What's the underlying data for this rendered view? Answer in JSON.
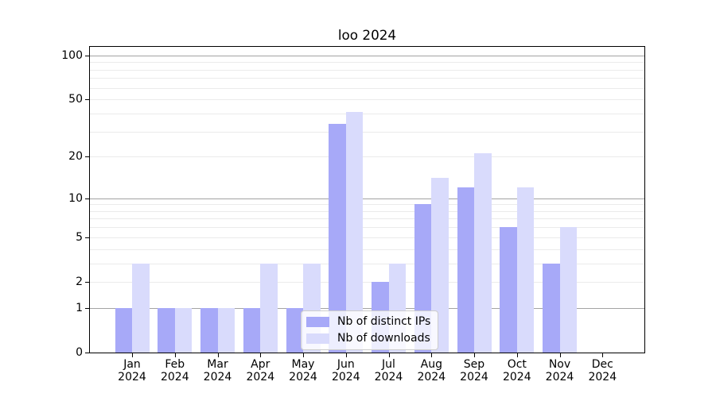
{
  "chart_data": {
    "type": "bar",
    "title": "loo 2024",
    "categories": [
      "Jan",
      "Feb",
      "Mar",
      "Apr",
      "May",
      "Jun",
      "Jul",
      "Aug",
      "Sep",
      "Oct",
      "Nov",
      "Dec"
    ],
    "category_year": "2024",
    "series": [
      {
        "name": "Nb of distinct IPs",
        "color": "#a7a9f8",
        "values": [
          1,
          1,
          1,
          1,
          1,
          34,
          2,
          9,
          12,
          6,
          3,
          0
        ]
      },
      {
        "name": "Nb of downloads",
        "color": "#d9dbfc",
        "values": [
          3,
          1,
          1,
          3,
          3,
          41,
          3,
          14,
          21,
          12,
          6,
          0
        ]
      }
    ],
    "yscale": "log1p",
    "ylim": [
      0,
      114.3
    ],
    "yticks": [
      0,
      1,
      2,
      5,
      10,
      20,
      50,
      100
    ],
    "gridlines_major": [
      1,
      10,
      100
    ],
    "gridlines_minor": [
      2,
      3,
      4,
      5,
      6,
      7,
      8,
      9,
      20,
      30,
      40,
      50,
      60,
      70,
      80,
      90
    ],
    "grid_on": true,
    "legend_position": "inside-bottom-center",
    "colors": {
      "grid_major": "#a3a3a3",
      "grid_minor": "#ebebeb",
      "spine": "#000000",
      "background": "#ffffff"
    }
  }
}
